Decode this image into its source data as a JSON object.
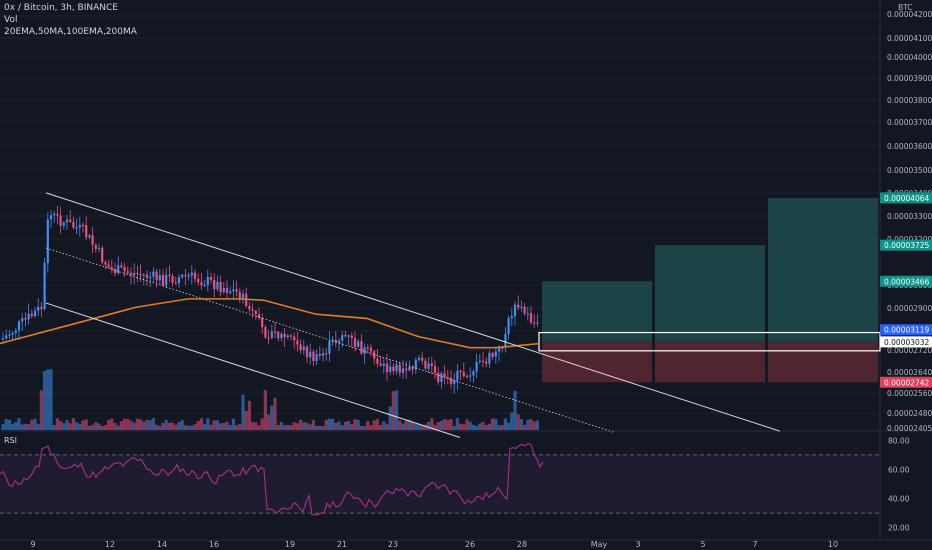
{
  "header": {
    "title": "0x / Bitcoin, 3h, BINANCE",
    "volume_label": "Vol",
    "indicators": "20EMA,50MA,100EMA,200MA"
  },
  "colors": {
    "background": "#131722",
    "up": "#3f8ff3",
    "down": "#ef4f7d",
    "ema": "#e07b24",
    "channel": "#d9d9d9",
    "profit_zone": "#1e4b4b",
    "loss_zone": "#5b2932",
    "rsi_line": "#9c2f84",
    "label_green": "#0d9488",
    "label_blue": "#2962ff",
    "label_red": "#e0405c"
  },
  "price_axis": {
    "unit": "BTC",
    "ticks": [
      "0.00004100",
      "0.00004000",
      "0.00003900",
      "0.00003800",
      "0.00003700",
      "0.00003600",
      "0.00003500",
      "0.00003400",
      "0.00003300",
      "0.00003200",
      "0.00003000",
      "0.00002900",
      "0.00002800",
      "0.00002720",
      "0.00002640",
      "0.00002560",
      "0.00002480",
      "0.00002405"
    ],
    "top_partial": "0.00004200",
    "badges": [
      {
        "value": "0.00004064",
        "kind": "green"
      },
      {
        "value": "0.00003725",
        "kind": "green"
      },
      {
        "value": "0.00003466",
        "kind": "green"
      },
      {
        "value": "0.00003119",
        "kind": "blue"
      },
      {
        "value": "0.00003032",
        "kind": "white"
      },
      {
        "value": "0.00002742",
        "kind": "red"
      }
    ]
  },
  "rsi": {
    "label": "RSI",
    "ticks": [
      "80.00",
      "60.00",
      "40.00",
      "20.00"
    ]
  },
  "time_axis": {
    "ticks": [
      "9",
      "12",
      "14",
      "16",
      "19",
      "21",
      "23",
      "26",
      "28",
      "May",
      "3",
      "5",
      "7",
      "10"
    ]
  },
  "chart_data": {
    "type": "candlestick",
    "title": "0x / Bitcoin, 3h, BINANCE",
    "y_unit": "BTC",
    "ylim": [
      2.4e-05,
      4.21e-05
    ],
    "x_ticks": [
      "9",
      "12",
      "14",
      "16",
      "19",
      "21",
      "23",
      "26",
      "28",
      "May",
      "3",
      "5",
      "7",
      "10"
    ],
    "series": [
      {
        "name": "20EMA,50MA,100EMA,200MA",
        "type": "ema"
      }
    ],
    "close_path": [
      {
        "date": "Apr 9",
        "close": 3.05e-05
      },
      {
        "date": "Apr 9",
        "close": 3.28e-05
      },
      {
        "date": "Apr 10",
        "close": 3.95e-05
      },
      {
        "date": "Apr 11",
        "close": 3.82e-05
      },
      {
        "date": "Apr 12",
        "close": 3.55e-05
      },
      {
        "date": "Apr 13",
        "close": 3.52e-05
      },
      {
        "date": "Apr 14",
        "close": 3.48e-05
      },
      {
        "date": "Apr 15",
        "close": 3.5e-05
      },
      {
        "date": "Apr 16",
        "close": 3.45e-05
      },
      {
        "date": "Apr 17",
        "close": 3.38e-05
      },
      {
        "date": "Apr 18",
        "close": 3.1e-05
      },
      {
        "date": "Apr 19",
        "close": 3.06e-05
      },
      {
        "date": "Apr 20",
        "close": 2.9e-05
      },
      {
        "date": "Apr 21",
        "close": 3.09e-05
      },
      {
        "date": "Apr 22",
        "close": 2.95e-05
      },
      {
        "date": "Apr 23",
        "close": 2.81e-05
      },
      {
        "date": "Apr 24",
        "close": 2.9e-05
      },
      {
        "date": "Apr 25",
        "close": 2.75e-05
      },
      {
        "date": "Apr 26",
        "close": 2.82e-05
      },
      {
        "date": "Apr 27",
        "close": 2.97e-05
      },
      {
        "date": "Apr 27",
        "close": 3.32e-05
      },
      {
        "date": "Apr 28",
        "close": 3.12e-05
      }
    ],
    "ema": [
      {
        "date": "Apr 9",
        "value": 3.02e-05
      },
      {
        "date": "Apr 11",
        "value": 3.18e-05
      },
      {
        "date": "Apr 13",
        "value": 3.28e-05
      },
      {
        "date": "Apr 15",
        "value": 3.34e-05
      },
      {
        "date": "Apr 17",
        "value": 3.34e-05
      },
      {
        "date": "Apr 18",
        "value": 3.33e-05
      },
      {
        "date": "Apr 20",
        "value": 3.23e-05
      },
      {
        "date": "Apr 22",
        "value": 3.2e-05
      },
      {
        "date": "Apr 24",
        "value": 3.07e-05
      },
      {
        "date": "Apr 26",
        "value": 2.99e-05
      },
      {
        "date": "Apr 27",
        "value": 2.99e-05
      },
      {
        "date": "Apr 28",
        "value": 3.02e-05
      }
    ],
    "channel_upper": [
      {
        "date": "Apr 9",
        "value": 4.1e-05
      },
      {
        "date": "Apr 27",
        "value": 3.02e-05
      }
    ],
    "channel_lower": [
      {
        "date": "Apr 9",
        "value": 3.31e-05
      },
      {
        "date": "Apr 23",
        "value": 2.48e-05
      }
    ],
    "trade_entry": 3.032e-05,
    "targets": [
      3.466e-05,
      3.725e-05,
      4.064e-05
    ],
    "stop": 2.742e-05,
    "current": 3.119e-05,
    "rsi_ylim": [
      15,
      85
    ],
    "rsi_levels": [
      70,
      30
    ]
  }
}
